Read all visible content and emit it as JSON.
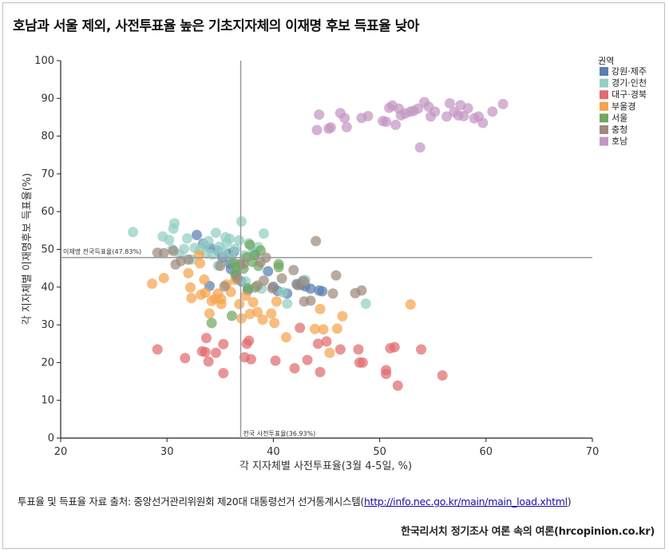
{
  "title": "호남과 서울 제외, 사전투표율 높은 기초지자체의 이재명 후보 득표율 낮아",
  "source": {
    "prefix": "투표율 및 득표율 자료 출처: 중앙선거관리위원회 제20대 대통령선거 선거통계시스템(",
    "link": "http://info.nec.go.kr/main/main_load.xhtml",
    "suffix": ")"
  },
  "credit": "한국리서치 정기조사 여론 속의 여론(hrcopinion.co.kr)",
  "chart_data": {
    "type": "scatter",
    "xlabel": "각 지자체별 사전투표율(3월 4-5일, %)",
    "ylabel": "각 지자체별 이재명후보 득표율(%)",
    "xlim": [
      20,
      70
    ],
    "ylim": [
      0,
      100
    ],
    "xticks": [
      20,
      30,
      40,
      50,
      60,
      70
    ],
    "yticks": [
      0,
      10,
      20,
      30,
      40,
      50,
      60,
      70,
      80,
      90,
      100
    ],
    "grid": false,
    "legend_position": "top-right",
    "legend_title": "권역",
    "reference_lines": {
      "horizontal": {
        "value": 47.83,
        "label": "이재명 전국득표율(47.83%)"
      },
      "vertical": {
        "value": 36.93,
        "label": "전국 사전투표율(36.93%)"
      }
    },
    "series": [
      {
        "name": "강원·제주",
        "color": "#5a7fb0",
        "points": [
          [
            32.8,
            53.8
          ],
          [
            33.4,
            51.5
          ],
          [
            34.1,
            50.3
          ],
          [
            34.8,
            49.6
          ],
          [
            35.2,
            47.8
          ],
          [
            35.9,
            46.3
          ],
          [
            36.0,
            44.8
          ],
          [
            36.3,
            49.4
          ],
          [
            36.5,
            43.2
          ],
          [
            37.0,
            41.5
          ],
          [
            37.6,
            39.2
          ],
          [
            38.2,
            48.5
          ],
          [
            39.5,
            44.2
          ],
          [
            40.0,
            40.1
          ],
          [
            40.4,
            39.0
          ],
          [
            41.3,
            38.3
          ],
          [
            42.2,
            40.8
          ],
          [
            42.8,
            41.7
          ],
          [
            43.0,
            40.2
          ],
          [
            43.5,
            39.6
          ],
          [
            44.3,
            39.1
          ],
          [
            44.6,
            38.9
          ],
          [
            42.6,
            40.6
          ],
          [
            34.0,
            40.3
          ],
          [
            35.8,
            48.9
          ]
        ]
      },
      {
        "name": "경기·인천",
        "color": "#93cfc3",
        "points": [
          [
            26.8,
            54.6
          ],
          [
            29.6,
            53.4
          ],
          [
            30.2,
            52.5
          ],
          [
            30.6,
            55.5
          ],
          [
            30.7,
            56.9
          ],
          [
            30.5,
            50.0
          ],
          [
            31.2,
            48.7
          ],
          [
            31.9,
            52.9
          ],
          [
            32.3,
            47.3
          ],
          [
            32.6,
            50.4
          ],
          [
            33.1,
            49.8
          ],
          [
            33.5,
            51.3
          ],
          [
            33.9,
            52.2
          ],
          [
            34.3,
            48.6
          ],
          [
            34.6,
            54.4
          ],
          [
            34.9,
            50.7
          ],
          [
            35.3,
            49.2
          ],
          [
            35.6,
            51.7
          ],
          [
            35.9,
            52.8
          ],
          [
            36.1,
            47.8
          ],
          [
            36.4,
            50.1
          ],
          [
            36.8,
            52.4
          ],
          [
            37.0,
            57.4
          ],
          [
            37.3,
            48.4
          ],
          [
            37.7,
            51.6
          ],
          [
            38.1,
            49.3
          ],
          [
            38.6,
            50.6
          ],
          [
            39.1,
            54.2
          ],
          [
            35.5,
            53.2
          ],
          [
            33.7,
            48.9
          ],
          [
            34.8,
            45.7
          ],
          [
            36.7,
            46.1
          ],
          [
            38.9,
            39.6
          ],
          [
            40.9,
            38.6
          ],
          [
            41.3,
            35.6
          ],
          [
            43.0,
            41.9
          ],
          [
            48.7,
            35.6
          ],
          [
            37.4,
            41.5
          ],
          [
            31.6,
            50.1
          ]
        ]
      },
      {
        "name": "대구·경북",
        "color": "#e06c6f",
        "points": [
          [
            29.1,
            23.5
          ],
          [
            31.7,
            21.2
          ],
          [
            33.3,
            23.0
          ],
          [
            33.6,
            22.8
          ],
          [
            33.7,
            26.5
          ],
          [
            33.9,
            20.3
          ],
          [
            34.6,
            22.6
          ],
          [
            35.3,
            24.9
          ],
          [
            35.3,
            17.2
          ],
          [
            37.3,
            21.4
          ],
          [
            37.5,
            25.0
          ],
          [
            37.7,
            25.8
          ],
          [
            37.9,
            20.9
          ],
          [
            40.2,
            20.5
          ],
          [
            42.0,
            18.5
          ],
          [
            42.5,
            29.2
          ],
          [
            43.2,
            20.7
          ],
          [
            44.2,
            25.0
          ],
          [
            44.4,
            17.5
          ],
          [
            45.0,
            25.6
          ],
          [
            46.3,
            23.5
          ],
          [
            48.0,
            23.5
          ],
          [
            48.1,
            20.0
          ],
          [
            48.4,
            20.0
          ],
          [
            50.6,
            18.0
          ],
          [
            50.6,
            17.0
          ],
          [
            51.0,
            23.8
          ],
          [
            51.4,
            24.1
          ],
          [
            51.7,
            13.9
          ],
          [
            53.9,
            23.5
          ],
          [
            55.9,
            16.6
          ]
        ]
      },
      {
        "name": "부울경",
        "color": "#f5a34e",
        "points": [
          [
            28.6,
            40.9
          ],
          [
            29.7,
            42.4
          ],
          [
            32.0,
            43.7
          ],
          [
            32.2,
            39.9
          ],
          [
            32.3,
            37.1
          ],
          [
            33.2,
            38.0
          ],
          [
            33.5,
            42.0
          ],
          [
            34.0,
            33.0
          ],
          [
            34.2,
            36.3
          ],
          [
            34.8,
            38.3
          ],
          [
            35.1,
            36.8
          ],
          [
            35.1,
            35.5
          ],
          [
            35.6,
            40.7
          ],
          [
            36.0,
            38.7
          ],
          [
            36.4,
            41.9
          ],
          [
            36.8,
            35.5
          ],
          [
            37.0,
            31.7
          ],
          [
            37.4,
            37.7
          ],
          [
            37.8,
            32.9
          ],
          [
            38.1,
            36.0
          ],
          [
            38.5,
            33.4
          ],
          [
            39.0,
            31.4
          ],
          [
            39.8,
            33.0
          ],
          [
            40.1,
            30.5
          ],
          [
            40.3,
            36.2
          ],
          [
            41.2,
            26.7
          ],
          [
            43.9,
            28.9
          ],
          [
            44.4,
            34.2
          ],
          [
            44.7,
            28.8
          ],
          [
            45.3,
            22.6
          ],
          [
            46.0,
            29.0
          ],
          [
            46.5,
            32.3
          ],
          [
            52.9,
            35.4
          ],
          [
            33.1,
            46.3
          ],
          [
            33.0,
            48.5
          ],
          [
            33.6,
            38.5
          ],
          [
            34.5,
            36.9
          ]
        ]
      },
      {
        "name": "서울",
        "color": "#6fa861",
        "points": [
          [
            34.2,
            30.5
          ],
          [
            36.1,
            32.4
          ],
          [
            36.4,
            43.6
          ],
          [
            36.6,
            45.2
          ],
          [
            36.9,
            46.1
          ],
          [
            37.2,
            44.9
          ],
          [
            37.5,
            47.9
          ],
          [
            37.8,
            51.2
          ],
          [
            38.0,
            46.7
          ],
          [
            38.3,
            48.6
          ],
          [
            38.6,
            45.6
          ],
          [
            38.8,
            49.7
          ],
          [
            40.5,
            46.1
          ],
          [
            40.5,
            45.3
          ],
          [
            37.6,
            39.7
          ],
          [
            36.2,
            46.4
          ],
          [
            38.3,
            39.9
          ]
        ]
      },
      {
        "name": "충청",
        "color": "#9e8a7b",
        "points": [
          [
            29.1,
            49.1
          ],
          [
            29.7,
            49.0
          ],
          [
            30.6,
            49.6
          ],
          [
            30.8,
            46.0
          ],
          [
            31.3,
            46.9
          ],
          [
            32.0,
            47.3
          ],
          [
            35.4,
            40.2
          ],
          [
            36.6,
            42.3
          ],
          [
            37.2,
            46.1
          ],
          [
            38.8,
            46.6
          ],
          [
            39.1,
            41.7
          ],
          [
            39.3,
            47.8
          ],
          [
            39.9,
            39.7
          ],
          [
            41.9,
            44.5
          ],
          [
            42.3,
            40.5
          ],
          [
            42.9,
            41.4
          ],
          [
            42.9,
            36.2
          ],
          [
            43.5,
            36.4
          ],
          [
            44.0,
            52.2
          ],
          [
            45.6,
            38.3
          ],
          [
            45.9,
            43.1
          ],
          [
            47.7,
            38.4
          ],
          [
            48.3,
            39.1
          ],
          [
            40.8,
            42.3
          ],
          [
            38.5,
            40.4
          ],
          [
            35.0,
            45.6
          ]
        ]
      },
      {
        "name": "호남",
        "color": "#c396c4",
        "points": [
          [
            44.1,
            81.6
          ],
          [
            44.3,
            85.7
          ],
          [
            45.2,
            82.0
          ],
          [
            45.4,
            82.3
          ],
          [
            46.3,
            86.1
          ],
          [
            46.7,
            84.8
          ],
          [
            46.9,
            82.4
          ],
          [
            48.3,
            84.8
          ],
          [
            48.9,
            85.3
          ],
          [
            50.3,
            84.0
          ],
          [
            50.6,
            83.8
          ],
          [
            50.9,
            87.5
          ],
          [
            51.2,
            88.1
          ],
          [
            51.5,
            83.0
          ],
          [
            51.8,
            87.3
          ],
          [
            52.0,
            85.5
          ],
          [
            52.4,
            86.0
          ],
          [
            52.9,
            86.5
          ],
          [
            53.2,
            86.7
          ],
          [
            53.6,
            87.3
          ],
          [
            53.8,
            77.0
          ],
          [
            54.2,
            89.0
          ],
          [
            54.6,
            87.8
          ],
          [
            54.8,
            85.2
          ],
          [
            55.2,
            86.5
          ],
          [
            56.3,
            85.2
          ],
          [
            56.6,
            88.7
          ],
          [
            57.0,
            86.4
          ],
          [
            57.6,
            88.2
          ],
          [
            57.9,
            85.3
          ],
          [
            58.3,
            87.4
          ],
          [
            58.9,
            84.7
          ],
          [
            59.3,
            85.2
          ],
          [
            59.7,
            83.5
          ],
          [
            60.6,
            86.5
          ],
          [
            61.6,
            88.5
          ],
          [
            57.4,
            85.5
          ]
        ]
      }
    ]
  }
}
